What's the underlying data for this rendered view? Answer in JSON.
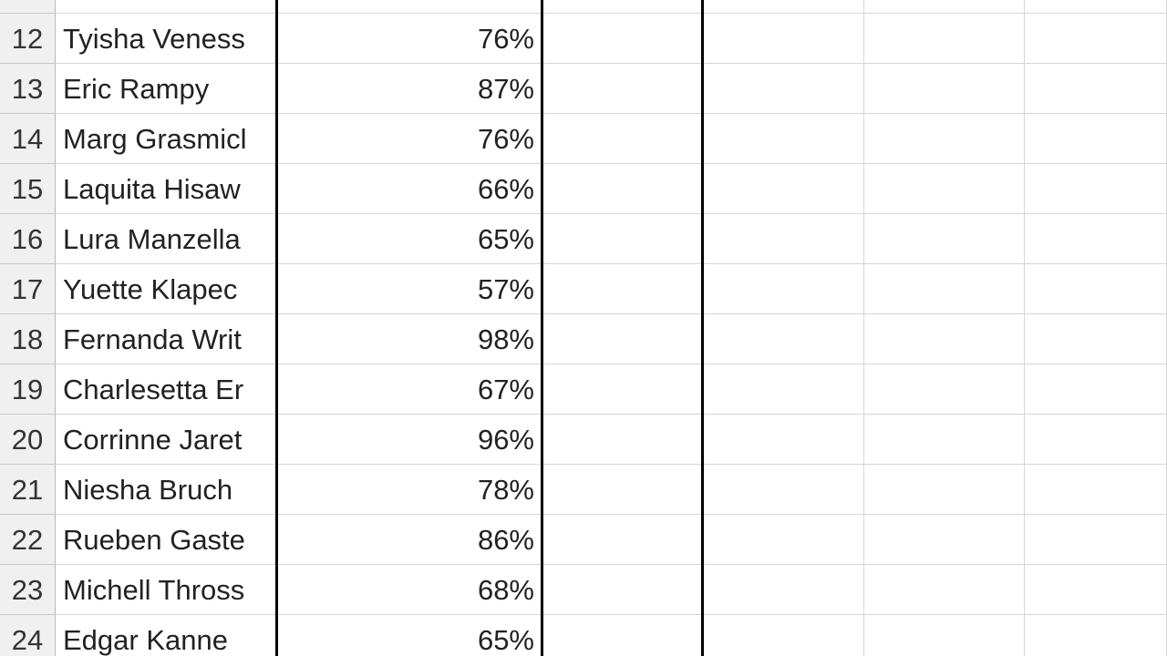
{
  "sheet": {
    "rows": [
      {
        "number": 12,
        "name": "Tyisha Veness",
        "score": "76%"
      },
      {
        "number": 13,
        "name": "Eric Rampy",
        "score": "87%"
      },
      {
        "number": 14,
        "name": "Marg Grasmicl",
        "score": "76%"
      },
      {
        "number": 15,
        "name": "Laquita Hisaw",
        "score": "66%"
      },
      {
        "number": 16,
        "name": "Lura Manzella",
        "score": "65%"
      },
      {
        "number": 17,
        "name": "Yuette Klapec",
        "score": "57%"
      },
      {
        "number": 18,
        "name": "Fernanda Writ",
        "score": "98%"
      },
      {
        "number": 19,
        "name": "Charlesetta Er",
        "score": "67%"
      },
      {
        "number": 20,
        "name": "Corrinne Jaret",
        "score": "96%"
      },
      {
        "number": 21,
        "name": "Niesha Bruch",
        "score": "78%"
      },
      {
        "number": 22,
        "name": "Rueben Gaste",
        "score": "86%"
      },
      {
        "number": 23,
        "name": "Michell Thross",
        "score": "68%"
      },
      {
        "number": 24,
        "name": "Edgar Kanne",
        "score": "65%"
      }
    ]
  }
}
